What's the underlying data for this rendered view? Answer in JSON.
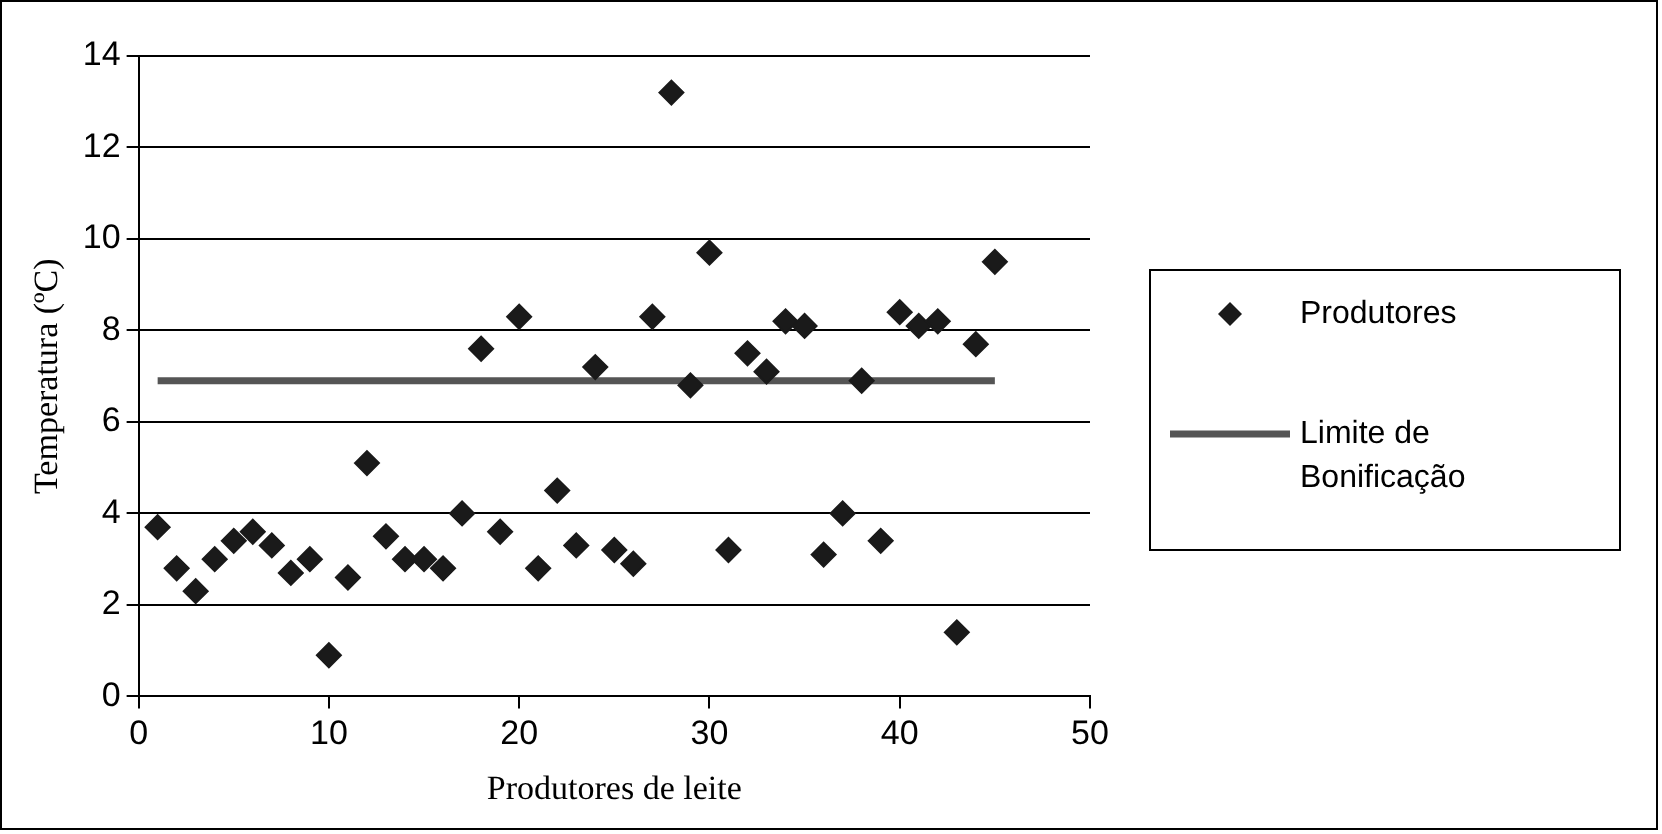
{
  "chart_data": {
    "type": "scatter",
    "xlabel": "Produtores de leite",
    "ylabel": "Temperatura (ºC)",
    "xlim": [
      0,
      50
    ],
    "xticks": [
      0,
      10,
      20,
      30,
      40,
      50
    ],
    "ylim": [
      0,
      14
    ],
    "yticks": [
      0,
      2,
      4,
      6,
      8,
      10,
      12,
      14
    ],
    "grid": "y",
    "legend": "right",
    "marker": "diamond",
    "series": [
      {
        "name": "Produtores",
        "color": "#1a1a1a",
        "x": [
          1,
          2,
          3,
          4,
          5,
          6,
          7,
          8,
          9,
          10,
          11,
          12,
          13,
          14,
          15,
          16,
          17,
          18,
          19,
          20,
          21,
          22,
          23,
          24,
          25,
          26,
          27,
          28,
          29,
          30,
          31,
          32,
          33,
          34,
          35,
          36,
          37,
          38,
          39,
          40,
          41,
          42,
          43,
          44,
          45
        ],
        "values": [
          3.7,
          2.8,
          2.3,
          3.0,
          3.4,
          3.6,
          3.3,
          2.7,
          3.0,
          0.9,
          2.6,
          5.1,
          3.5,
          3.0,
          3.0,
          2.8,
          4.0,
          7.6,
          3.6,
          8.3,
          2.8,
          4.5,
          3.3,
          7.2,
          3.2,
          2.9,
          8.3,
          13.2,
          6.8,
          9.7,
          3.2,
          7.5,
          7.1,
          8.2,
          8.1,
          3.1,
          4.0,
          6.9,
          3.4,
          8.4,
          8.1,
          8.2,
          1.4,
          7.7,
          9.5
        ]
      },
      {
        "name": "Limite de Bonificação",
        "type": "line",
        "marker": "none",
        "color": "#555555",
        "x": [
          1,
          45
        ],
        "values": [
          6.9,
          6.9
        ]
      }
    ]
  }
}
